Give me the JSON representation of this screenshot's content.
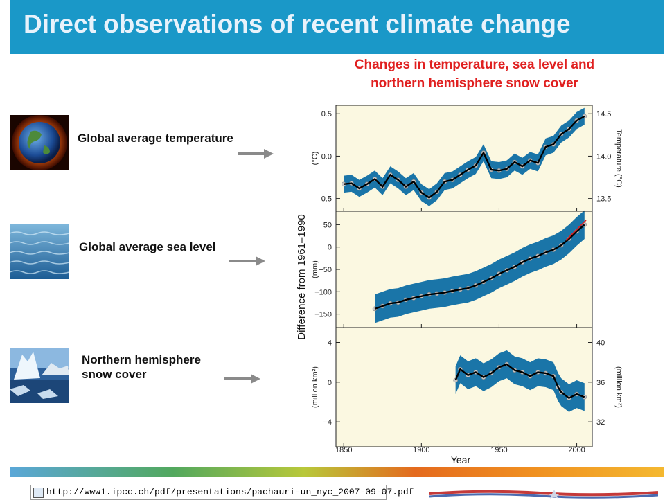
{
  "header": {
    "title": "Direct observations of recent climate change"
  },
  "subtitle": [
    "Changes in temperature, sea level and",
    "northern hemisphere snow cover"
  ],
  "rows": [
    {
      "label": [
        "Global average temperature"
      ],
      "icon": "earth-icon"
    },
    {
      "label": [
        "Global average sea level"
      ],
      "icon": "ocean-icon"
    },
    {
      "label": [
        "Northern hemisphere",
        "snow cover"
      ],
      "icon": "iceberg-icon"
    }
  ],
  "footer": {
    "url": "http://www1.ipcc.ch/pdf/presentations/pachauri-un_nyc_2007-09-07.pdf"
  },
  "colors": {
    "title_bar": "#1a98c8",
    "band": "#1a75a8",
    "subtitle": "#e02020"
  },
  "chart_data": {
    "type": "line",
    "xlabel": "Year",
    "ylabel": "Difference from 1961–1990",
    "xlim": [
      1845,
      2010
    ],
    "xticks": [
      1850,
      1900,
      1950,
      2000
    ],
    "panels": [
      {
        "name": "temperature",
        "left_unit": "(°C)",
        "right_unit": "Temperature (°C)",
        "ylim": [
          -0.65,
          0.6
        ],
        "left_ticks": [
          [
            "0.5",
            0.5
          ],
          [
            "0.0",
            0.0
          ],
          [
            "-0.5",
            -0.5
          ]
        ],
        "right_ticks": [
          [
            "14.5",
            0.5
          ],
          [
            "14.0",
            0.0
          ],
          [
            "13.5",
            -0.5
          ]
        ],
        "x": [
          1850,
          1855,
          1860,
          1865,
          1870,
          1875,
          1880,
          1885,
          1890,
          1895,
          1900,
          1905,
          1910,
          1915,
          1920,
          1925,
          1930,
          1935,
          1940,
          1945,
          1950,
          1955,
          1960,
          1965,
          1970,
          1975,
          1980,
          1985,
          1990,
          1995,
          2000,
          2005
        ],
        "y": [
          -0.33,
          -0.32,
          -0.38,
          -0.33,
          -0.27,
          -0.36,
          -0.22,
          -0.28,
          -0.36,
          -0.3,
          -0.43,
          -0.49,
          -0.42,
          -0.3,
          -0.28,
          -0.22,
          -0.16,
          -0.11,
          0.04,
          -0.16,
          -0.17,
          -0.15,
          -0.07,
          -0.12,
          -0.05,
          -0.08,
          0.11,
          0.14,
          0.26,
          0.32,
          0.42,
          0.47
        ],
        "band": 0.1
      },
      {
        "name": "sea level",
        "left_unit": "(mm)",
        "right_unit": "",
        "ylim": [
          -180,
          80
        ],
        "left_ticks": [
          [
            "50",
            50
          ],
          [
            "0",
            0
          ],
          [
            "−50",
            -50
          ],
          [
            "−100",
            -100
          ],
          [
            "−150",
            -150
          ]
        ],
        "right_ticks": [],
        "x": [
          1870,
          1875,
          1880,
          1885,
          1890,
          1895,
          1900,
          1905,
          1910,
          1915,
          1920,
          1925,
          1930,
          1935,
          1940,
          1945,
          1950,
          1955,
          1960,
          1965,
          1970,
          1975,
          1980,
          1985,
          1990,
          1995,
          2000,
          2005
        ],
        "y": [
          -138,
          -132,
          -126,
          -124,
          -118,
          -114,
          -110,
          -106,
          -104,
          -102,
          -98,
          -95,
          -92,
          -86,
          -78,
          -70,
          -60,
          -52,
          -44,
          -34,
          -26,
          -20,
          -12,
          -6,
          4,
          18,
          35,
          50
        ],
        "band": 32
      },
      {
        "name": "snow cover",
        "left_unit": "(million km²)",
        "right_unit": "(million km²)",
        "ylim": [
          -6.5,
          5.5
        ],
        "left_ticks": [
          [
            "4",
            4
          ],
          [
            "0",
            0
          ],
          [
            "−4",
            -4
          ]
        ],
        "right_ticks": [
          [
            "40",
            4
          ],
          [
            "36",
            0
          ],
          [
            "32",
            -4
          ]
        ],
        "x": [
          1922,
          1925,
          1930,
          1935,
          1940,
          1945,
          1950,
          1955,
          1960,
          1965,
          1970,
          1975,
          1980,
          1985,
          1988,
          1990,
          1995,
          2000,
          2005
        ],
        "y": [
          0.2,
          1.3,
          0.7,
          1.0,
          0.5,
          0.9,
          1.5,
          1.8,
          1.2,
          1.0,
          0.6,
          1.0,
          0.9,
          0.6,
          -0.5,
          -1.0,
          -1.6,
          -1.2,
          -1.5
        ],
        "band": 1.4
      }
    ]
  }
}
